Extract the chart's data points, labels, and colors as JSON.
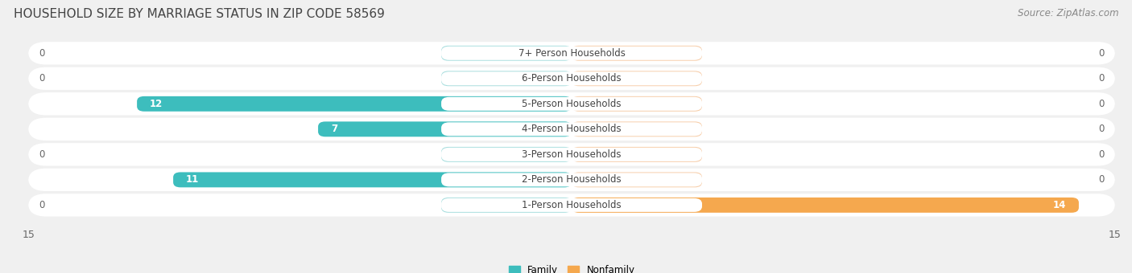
{
  "title": "HOUSEHOLD SIZE BY MARRIAGE STATUS IN ZIP CODE 58569",
  "source": "Source: ZipAtlas.com",
  "categories": [
    "7+ Person Households",
    "6-Person Households",
    "5-Person Households",
    "4-Person Households",
    "3-Person Households",
    "2-Person Households",
    "1-Person Households"
  ],
  "family_values": [
    0,
    0,
    12,
    7,
    0,
    11,
    0
  ],
  "nonfamily_values": [
    0,
    0,
    0,
    0,
    0,
    0,
    14
  ],
  "family_color": "#3dbdbd",
  "nonfamily_color": "#f5a84e",
  "family_color_light": "#a8dede",
  "nonfamily_color_light": "#f7ceaa",
  "x_min": -15,
  "x_max": 15,
  "background_color": "#f0f0f0",
  "title_fontsize": 11,
  "source_fontsize": 8.5,
  "label_fontsize": 8.5,
  "value_fontsize": 8.5,
  "tick_fontsize": 9
}
